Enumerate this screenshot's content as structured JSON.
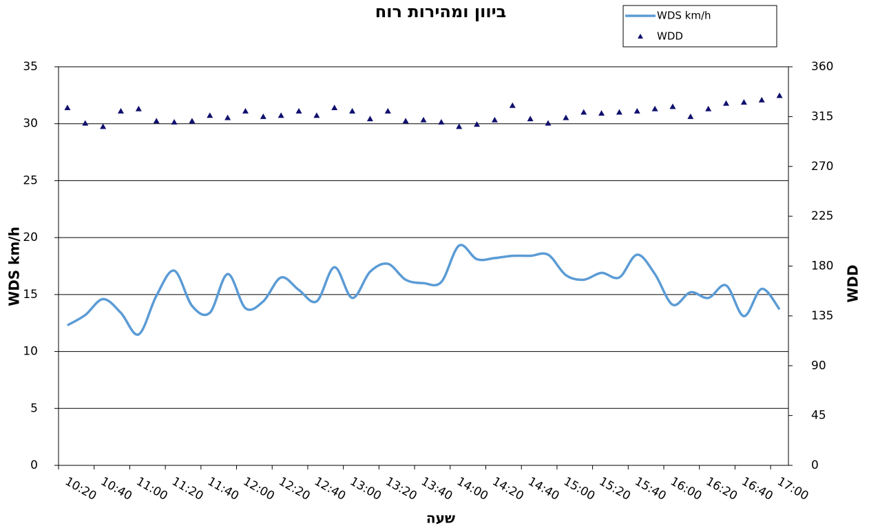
{
  "chart_data": {
    "type": "line",
    "title": "ביוון ומהירות רוח",
    "x_label": "שעה",
    "y_label": "WDS  km/h",
    "y2_label": "WDD",
    "categories": [
      "10:20",
      null,
      "10:40",
      null,
      "11:00",
      null,
      "11:20",
      null,
      "11:40",
      null,
      "12:00",
      null,
      "12:20",
      null,
      "12:40",
      null,
      "13:00",
      null,
      "13:20",
      null,
      "13:40",
      null,
      "14:00",
      null,
      "14:20",
      null,
      "14:40",
      null,
      "15:00",
      null,
      "15:20",
      null,
      "15:40",
      null,
      "16:00",
      null,
      "16:20",
      null,
      "16:40",
      null,
      "17:00"
    ],
    "series": [
      {
        "name": "WDS km/h",
        "type": "line",
        "color": "#5b9bd5",
        "axis": "y",
        "values": [
          12.3,
          13.2,
          14.6,
          13.4,
          11.5,
          14.9,
          17.1,
          14.0,
          13.4,
          16.8,
          13.8,
          14.4,
          16.5,
          15.4,
          14.4,
          17.4,
          14.7,
          17.0,
          17.7,
          16.3,
          16.0,
          16.1,
          19.3,
          18.1,
          18.2,
          18.4,
          18.4,
          18.5,
          16.7,
          16.3,
          16.9,
          16.5,
          18.5,
          16.8,
          14.1,
          15.2,
          14.7,
          15.8,
          13.1,
          15.5,
          13.7
        ]
      },
      {
        "name": "WDD",
        "type": "scatter",
        "marker": "triangle",
        "color": "#10106e",
        "axis": "y2",
        "values": [
          323,
          309,
          306,
          320,
          322,
          311,
          310,
          311,
          316,
          314,
          320,
          315,
          316,
          320,
          316,
          323,
          320,
          313,
          320,
          311,
          312,
          310,
          306,
          308,
          312,
          325,
          313,
          309,
          314,
          319,
          318,
          319,
          320,
          322,
          324,
          315,
          322,
          327,
          328,
          330,
          334
        ]
      }
    ],
    "ylim": [
      0,
      35
    ],
    "yticks": [
      0,
      5,
      10,
      15,
      20,
      25,
      30,
      35
    ],
    "y2lim": [
      0,
      360
    ],
    "y2ticks": [
      0,
      45,
      90,
      135,
      180,
      225,
      270,
      315,
      360
    ],
    "grid": true,
    "legend": "top-right"
  }
}
